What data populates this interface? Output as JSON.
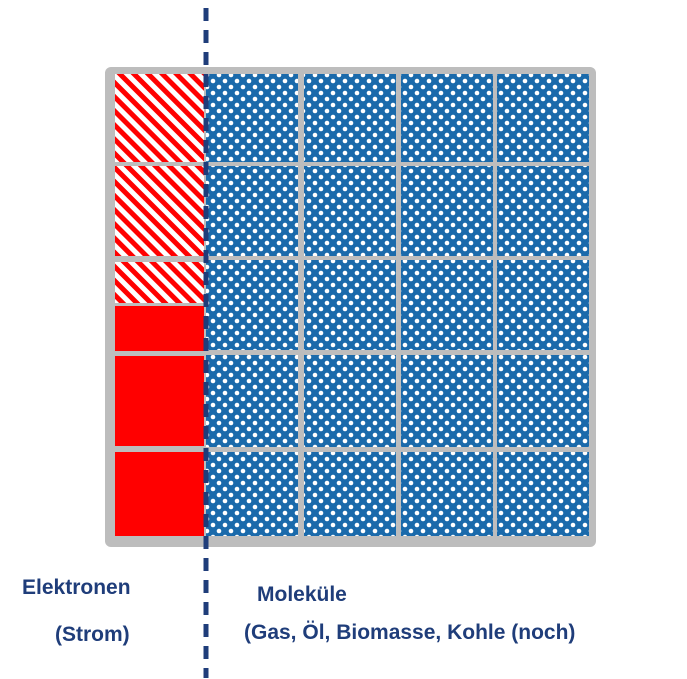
{
  "colors": {
    "frame": "#bdbdbd",
    "electrons": "#ff0000",
    "molecules": "#1a6aab",
    "divider": "#1f3d7a",
    "text": "#1f3d7a"
  },
  "grid": {
    "rows": 5,
    "molecule_columns": 4,
    "electron_column": [
      "hatched",
      "hatched",
      "hatched",
      "solid",
      "solid",
      "solid"
    ]
  },
  "labels": {
    "electrons_line1": "Elektronen",
    "electrons_line2": "(Strom)",
    "molecules_line1": "Moleküle",
    "molecules_line2": "(Gas, Öl, Biomasse, Kohle (noch)"
  }
}
